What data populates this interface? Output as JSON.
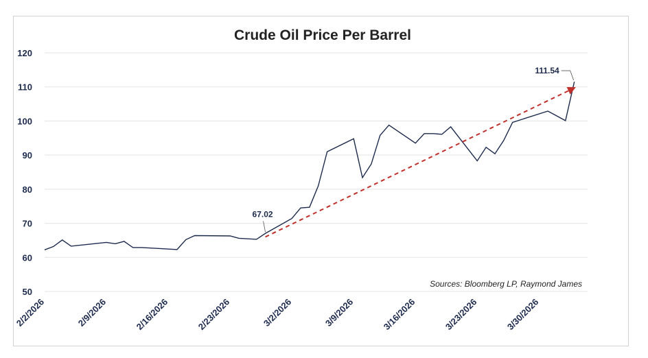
{
  "chart_data": {
    "type": "line",
    "title": "Crude Oil Price Per Barrel",
    "xlabel": "",
    "ylabel": "",
    "ylim": [
      50,
      120
    ],
    "yticks": [
      "120",
      "110",
      "100",
      "90",
      "80",
      "70",
      "60",
      "50"
    ],
    "xticks": [
      {
        "label": "2/2/2026",
        "day": 0
      },
      {
        "label": "2/9/2026",
        "day": 7
      },
      {
        "label": "2/16/2026",
        "day": 14
      },
      {
        "label": "2/23/2026",
        "day": 21
      },
      {
        "label": "3/2/2026",
        "day": 28
      },
      {
        "label": "3/9/2026",
        "day": 35
      },
      {
        "label": "3/16/2026",
        "day": 42
      },
      {
        "label": "3/23/2026",
        "day": 49
      },
      {
        "label": "3/30/2026",
        "day": 56
      }
    ],
    "grid": true,
    "source": "Sources: Bloomberg LP, Raymond James",
    "line_color": "#1c2a4d",
    "trend_color": "#c0302a",
    "series": [
      {
        "points": [
          [
            0,
            62.2
          ],
          [
            1,
            63.2
          ],
          [
            2,
            65.1
          ],
          [
            3,
            63.3
          ],
          [
            7,
            64.4
          ],
          [
            8,
            64.0
          ],
          [
            9,
            64.7
          ],
          [
            10,
            62.9
          ],
          [
            11,
            62.9
          ],
          [
            15,
            62.3
          ],
          [
            16,
            65.2
          ],
          [
            17,
            66.4
          ],
          [
            21,
            66.3
          ],
          [
            22,
            65.6
          ],
          [
            24,
            65.3
          ],
          [
            25,
            67.02
          ],
          [
            28,
            71.4
          ],
          [
            29,
            74.5
          ],
          [
            30,
            74.7
          ],
          [
            31,
            81.0
          ],
          [
            32,
            91.0
          ],
          [
            35,
            94.8
          ],
          [
            36,
            83.4
          ],
          [
            37,
            87.4
          ],
          [
            38,
            95.8
          ],
          [
            39,
            98.8
          ],
          [
            42,
            93.5
          ],
          [
            43,
            96.3
          ],
          [
            44,
            96.3
          ],
          [
            45,
            96.1
          ],
          [
            46,
            98.3
          ],
          [
            49,
            88.3
          ],
          [
            50,
            92.3
          ],
          [
            51,
            90.4
          ],
          [
            52,
            94.3
          ],
          [
            53,
            99.6
          ],
          [
            57,
            102.9
          ],
          [
            59,
            100.1
          ],
          [
            60,
            111.54
          ]
        ]
      }
    ],
    "trend": {
      "from": [
        25,
        66.0
      ],
      "to": [
        60,
        109.7
      ]
    },
    "annotations": [
      {
        "text": "67.02",
        "day": 25,
        "value": 67.02
      },
      {
        "text": "111.54",
        "day": 60,
        "value": 111.54
      }
    ]
  }
}
